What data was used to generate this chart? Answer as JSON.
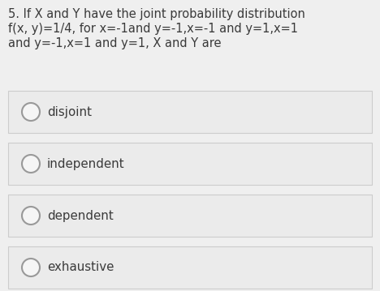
{
  "question_text_line1": "5. If X and Y have the joint probability distribution",
  "question_text_line2": "f(x, y)=1/4, for x=-1and y=-1,x=-1 and y=1,x=1",
  "question_text_line3": "and y=-1,x=1 and y=1, X and Y are",
  "options": [
    "disjoint",
    "independent",
    "dependent",
    "exhaustive"
  ],
  "bg_color": "#efefef",
  "option_box_color": "#ebebeb",
  "option_box_border_color": "#cccccc",
  "text_color": "#3a3a3a",
  "circle_edge_color": "#999999",
  "circle_fill_color": "#f5f5f5",
  "question_fontsize": 10.5,
  "option_fontsize": 10.8,
  "fig_width": 4.68,
  "fig_height": 3.59,
  "dpi": 100
}
